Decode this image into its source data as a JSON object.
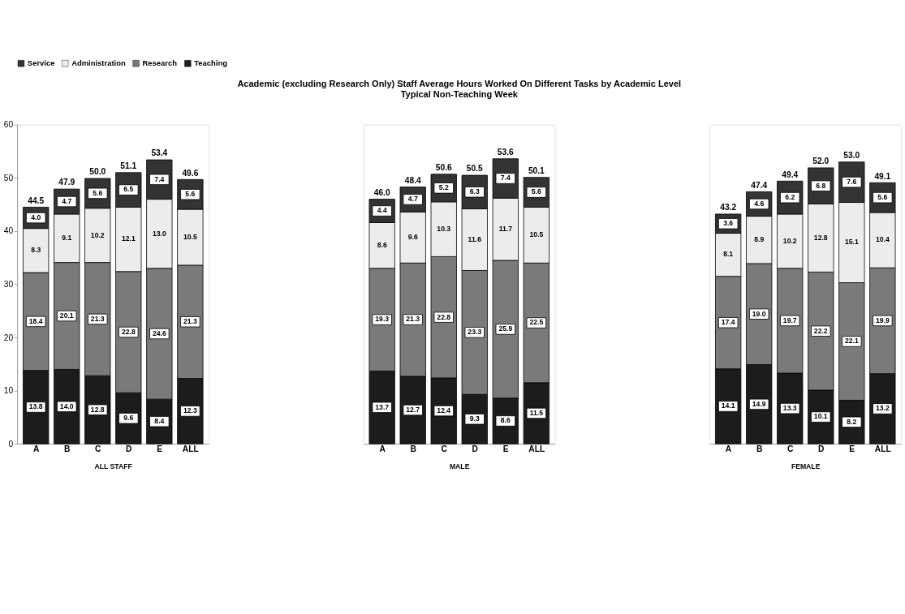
{
  "chart_data": [
    {
      "type": "bar",
      "xlabel": "ALL STAFF",
      "categories": [
        "A",
        "B",
        "C",
        "D",
        "E",
        "ALL"
      ],
      "stacked": true,
      "ylim": [
        0,
        60
      ],
      "yticks": [
        0,
        10,
        20,
        30,
        40,
        50,
        60
      ],
      "legend": "top",
      "grid": false,
      "series": [
        {
          "name": "Teaching",
          "color": "#1c1c1c",
          "values": [
            13.8,
            14.0,
            12.8,
            9.6,
            8.4,
            12.3
          ],
          "value_labels": [
            "13.8",
            "14.0",
            "12.8",
            "9.6",
            "8.4",
            "12.3"
          ]
        },
        {
          "name": "Research",
          "color": "#7a7a7a",
          "values": [
            18.4,
            20.1,
            21.3,
            22.8,
            24.6,
            21.3
          ],
          "value_labels": [
            "18.4",
            "20.1",
            "21.3",
            "22.8",
            "24.6",
            "21.3"
          ]
        },
        {
          "name": "Administration",
          "color": "#ececec",
          "values": [
            8.3,
            9.1,
            10.2,
            12.1,
            13.0,
            10.5
          ],
          "value_labels": [
            "8.3",
            "9.1",
            "10.2",
            "12.1",
            "13.0",
            "10.5"
          ]
        },
        {
          "name": "Service",
          "color": "#333333",
          "values": [
            4.0,
            4.7,
            5.6,
            6.5,
            7.4,
            5.6
          ],
          "value_labels": [
            "4.0",
            "4.7",
            "5.6",
            "6.5",
            "7.4",
            "5.6"
          ]
        }
      ],
      "totals": [
        "44.5",
        "47.9",
        "50.0",
        "51.1",
        "53.4",
        "49.6"
      ]
    },
    {
      "type": "bar",
      "title": "Academic (excluding Research Only) Staff Average Hours Worked On Different Tasks  by Academic Level",
      "subtitle": "Typical Non-Teaching Week",
      "xlabel": "MALE",
      "categories": [
        "A",
        "B",
        "C",
        "D",
        "E",
        "ALL"
      ],
      "stacked": true,
      "ylim": [
        0,
        60
      ],
      "yticks": [
        0,
        10,
        20,
        30,
        40,
        50,
        60
      ],
      "tick_labels": "x",
      "grid": false,
      "series": [
        {
          "name": "Teaching",
          "color": "#1c1c1c",
          "values": [
            13.7,
            12.7,
            12.4,
            9.3,
            8.6,
            11.5
          ],
          "value_labels": [
            "13.7",
            "12.7",
            "12.4",
            "9.3",
            "8.6",
            "11.5"
          ]
        },
        {
          "name": "Research",
          "color": "#7a7a7a",
          "values": [
            19.3,
            21.3,
            22.8,
            23.3,
            25.9,
            22.5
          ],
          "value_labels": [
            "19.3",
            "21.3",
            "22.8",
            "23.3",
            "25.9",
            "22.5"
          ]
        },
        {
          "name": "Administration",
          "color": "#ececec",
          "values": [
            8.6,
            9.6,
            10.3,
            11.6,
            11.7,
            10.5
          ],
          "value_labels": [
            "8.6",
            "9.6",
            "10.3",
            "11.6",
            "11.7",
            "10.5"
          ]
        },
        {
          "name": "Service",
          "color": "#333333",
          "values": [
            4.4,
            4.7,
            5.2,
            6.3,
            7.4,
            5.6
          ],
          "value_labels": [
            "4.4",
            "4.7",
            "5.2",
            "6.3",
            "7.4",
            "5.6"
          ]
        }
      ],
      "totals": [
        "46.0",
        "48.4",
        "50.6",
        "50.5",
        "53.6",
        "50.1"
      ]
    },
    {
      "type": "bar",
      "xlabel": "FEMALE",
      "categories": [
        "A",
        "B",
        "C",
        "D",
        "E",
        "ALL"
      ],
      "stacked": true,
      "ylim": [
        0,
        60
      ],
      "yticks": [
        0,
        10,
        20,
        30,
        40,
        50,
        60
      ],
      "tick_labels": "x",
      "grid": false,
      "series": [
        {
          "name": "Teaching",
          "color": "#1c1c1c",
          "values": [
            14.1,
            14.9,
            13.3,
            10.1,
            8.2,
            13.2
          ],
          "value_labels": [
            "14.1",
            "14.9",
            "13.3",
            "10.1",
            "8.2",
            "13.2"
          ]
        },
        {
          "name": "Research",
          "color": "#7a7a7a",
          "values": [
            17.4,
            19.0,
            19.7,
            22.2,
            22.1,
            19.9
          ],
          "value_labels": [
            "17.4",
            "19.0",
            "19.7",
            "22.2",
            "22.1",
            "19.9"
          ]
        },
        {
          "name": "Administration",
          "color": "#ececec",
          "values": [
            8.1,
            8.9,
            10.2,
            12.8,
            15.1,
            10.4
          ],
          "value_labels": [
            "8.1",
            "8.9",
            "10.2",
            "12.8",
            "15.1",
            "10.4"
          ]
        },
        {
          "name": "Service",
          "color": "#333333",
          "values": [
            3.6,
            4.6,
            6.2,
            6.8,
            7.6,
            5.6
          ],
          "value_labels": [
            "3.6",
            "4.6",
            "6.2",
            "6.8",
            "7.6",
            "5.6"
          ]
        }
      ],
      "totals": [
        "43.2",
        "47.4",
        "49.4",
        "52.0",
        "53.0",
        "49.1"
      ]
    }
  ]
}
